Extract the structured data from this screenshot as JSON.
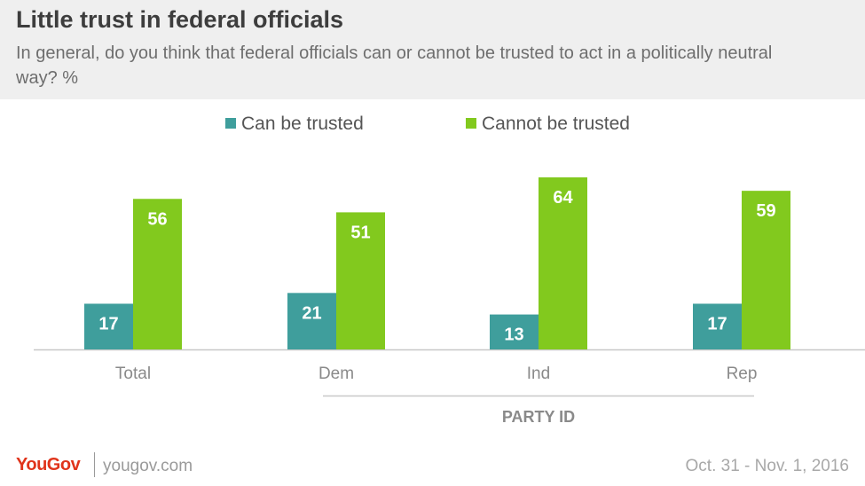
{
  "header": {
    "title": "Little trust in federal officials",
    "subtitle": "In general, do you think that federal officials can or cannot be trusted to act in a politically neutral way? %"
  },
  "footer": {
    "logo": "YouGov",
    "url": "yougov.com",
    "date": "Oct. 31 - Nov. 1, 2016"
  },
  "colors": {
    "can_be_trusted": "#3f9e9c",
    "cannot_be_trusted": "#82c91e",
    "axis": "#c8c8c8",
    "tick_label": "#8a8a8a"
  },
  "chart_data": {
    "type": "bar",
    "title": "Little trust in federal officials",
    "categories": [
      "Total",
      "Dem",
      "Ind",
      "Rep"
    ],
    "group_label": "PARTY ID",
    "group_categories": [
      "Dem",
      "Ind",
      "Rep"
    ],
    "series": [
      {
        "name": "Can be trusted",
        "values": [
          17,
          21,
          13,
          17
        ]
      },
      {
        "name": "Cannot be trusted",
        "values": [
          56,
          51,
          64,
          59
        ]
      }
    ],
    "ylim": [
      0,
      64
    ],
    "legend_position": "top-center",
    "grid": false,
    "data_labels": true
  }
}
